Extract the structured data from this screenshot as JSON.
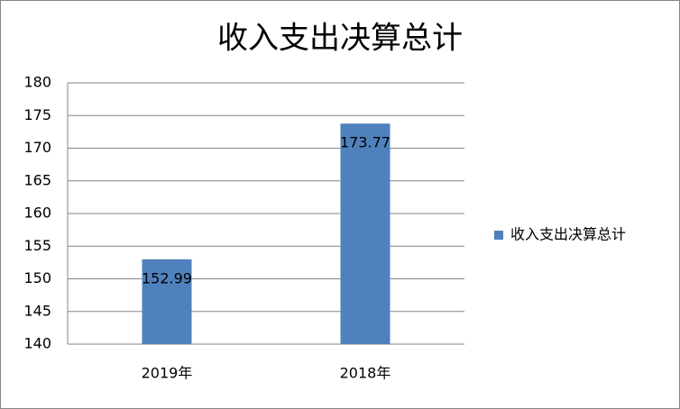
{
  "chart_data": {
    "type": "bar",
    "title": "收入支出决算总计",
    "categories": [
      "2019年",
      "2018年"
    ],
    "series": [
      {
        "name": "收入支出决算总计",
        "color": "#4f81bd",
        "values": [
          152.99,
          173.77
        ]
      }
    ],
    "ylim": [
      140,
      180
    ],
    "yticks": [
      140,
      145,
      150,
      155,
      160,
      165,
      170,
      175,
      180
    ],
    "grid": true,
    "legend": "right"
  }
}
